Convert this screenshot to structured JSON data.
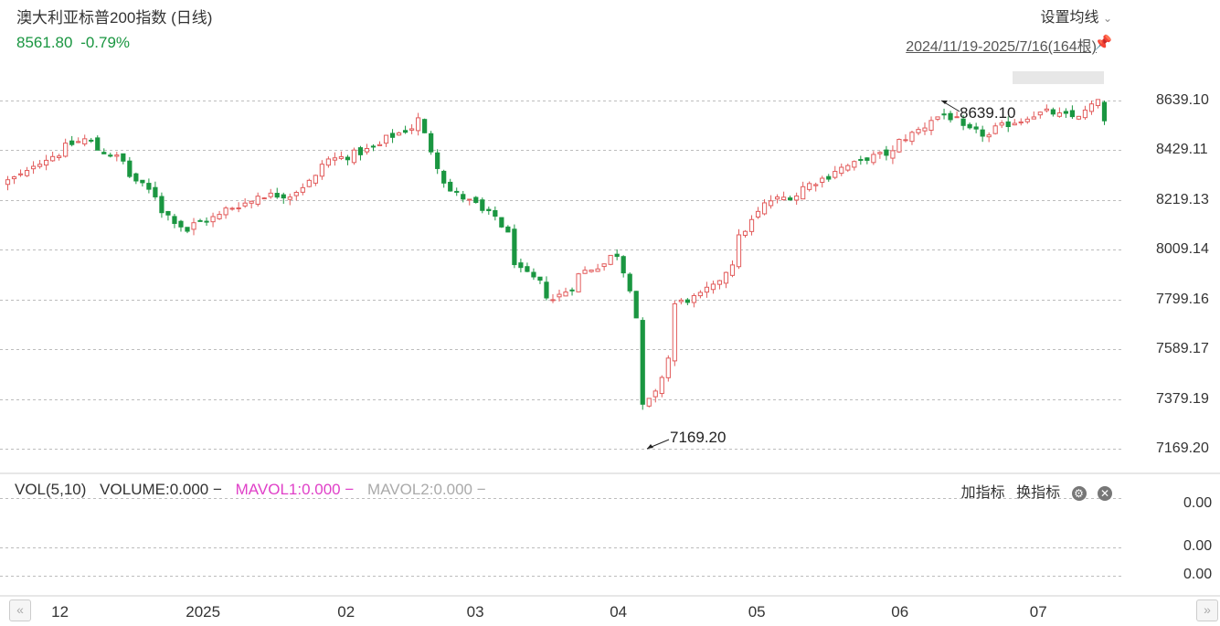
{
  "header": {
    "title": "澳大利亚标普200指数 (日线)",
    "price": "8561.80",
    "change": "-0.79%",
    "settings_label": "设置均线",
    "settings_chevron": "⌄",
    "date_range": "2024/11/19-2025/7/16(164根)",
    "pin_icon": "pin-icon"
  },
  "colors": {
    "up": "#e25b5b",
    "down": "#1a9641",
    "grid": "#bdbdbd"
  },
  "y_axis_labels": [
    "8639.10",
    "8429.11",
    "8219.13",
    "8009.14",
    "7799.16",
    "7589.17",
    "7379.19",
    "7169.20"
  ],
  "annotations": {
    "high": "8639.10",
    "low": "7169.20"
  },
  "volume_panel": {
    "vol_label": "VOL(5,10)",
    "volume": "VOLUME:0.000",
    "mavol1": "MAVOL1:0.000",
    "mavol2": "MAVOL2:0.000",
    "dash": "−",
    "y_labels": [
      "0.00",
      "0.00",
      "0.00"
    ],
    "add_indicator": "加指标",
    "switch_indicator": "换指标",
    "settings_icon": "gear-icon",
    "close_icon": "close-icon"
  },
  "navigation": {
    "left": "«",
    "right": "»"
  },
  "x_axis_labels": [
    "12",
    "2025",
    "02",
    "03",
    "04",
    "05",
    "06",
    "07"
  ],
  "chart_data": {
    "type": "candlestick",
    "title": "澳大利亚标普200指数 (日线)",
    "ylim": [
      7169.2,
      8639.1
    ],
    "y_ticks": [
      8639.1,
      8429.11,
      8219.13,
      8009.14,
      7799.16,
      7589.17,
      7379.19,
      7169.2
    ],
    "x_tick_labels": [
      "12",
      "2025",
      "02",
      "03",
      "04",
      "05",
      "06",
      "07"
    ],
    "x_tick_dates": [
      "2024-12-01",
      "2025-01-01",
      "2025-02-01",
      "2025-03-01",
      "2025-04-01",
      "2025-05-01",
      "2025-06-01",
      "2025-07-01"
    ],
    "date_range": [
      "2024-11-19",
      "2025-07-16"
    ],
    "bar_count": 164,
    "last_close": 8561.8,
    "high": {
      "value": 8639.1
    },
    "low": {
      "value": 7169.2
    },
    "close_path": [
      [
        "2024-11-19",
        8300
      ],
      [
        "2024-11-28",
        8405
      ],
      [
        "2024-12-05",
        8475
      ],
      [
        "2024-12-12",
        8400
      ],
      [
        "2024-12-19",
        8260
      ],
      [
        "2024-12-27",
        8090
      ],
      [
        "2025-01-06",
        8180
      ],
      [
        "2025-01-13",
        8240
      ],
      [
        "2025-01-20",
        8240
      ],
      [
        "2025-01-28",
        8390
      ],
      [
        "2025-02-04",
        8420
      ],
      [
        "2025-02-11",
        8490
      ],
      [
        "2025-02-17",
        8560
      ],
      [
        "2025-02-21",
        8300
      ],
      [
        "2025-02-28",
        8200
      ],
      [
        "2025-03-05",
        8150
      ],
      [
        "2025-03-11",
        7920
      ],
      [
        "2025-03-18",
        7800
      ],
      [
        "2025-03-25",
        7920
      ],
      [
        "2025-04-01",
        7990
      ],
      [
        "2025-04-03",
        7850
      ],
      [
        "2025-04-07",
        7345
      ],
      [
        "2025-04-09",
        7400
      ],
      [
        "2025-04-14",
        7780
      ],
      [
        "2025-04-22",
        7850
      ],
      [
        "2025-05-02",
        8200
      ],
      [
        "2025-05-09",
        8240
      ],
      [
        "2025-05-16",
        8320
      ],
      [
        "2025-05-23",
        8380
      ],
      [
        "2025-05-30",
        8420
      ],
      [
        "2025-06-06",
        8530
      ],
      [
        "2025-06-11",
        8580
      ],
      [
        "2025-06-16",
        8520
      ],
      [
        "2025-06-20",
        8490
      ],
      [
        "2025-06-26",
        8550
      ],
      [
        "2025-07-03",
        8590
      ],
      [
        "2025-07-09",
        8570
      ],
      [
        "2025-07-15",
        8630
      ],
      [
        "2025-07-16",
        8561.8
      ]
    ],
    "volume": {
      "VOLUME": 0.0,
      "MAVOL1": 0.0,
      "MAVOL2": 0.0
    }
  }
}
